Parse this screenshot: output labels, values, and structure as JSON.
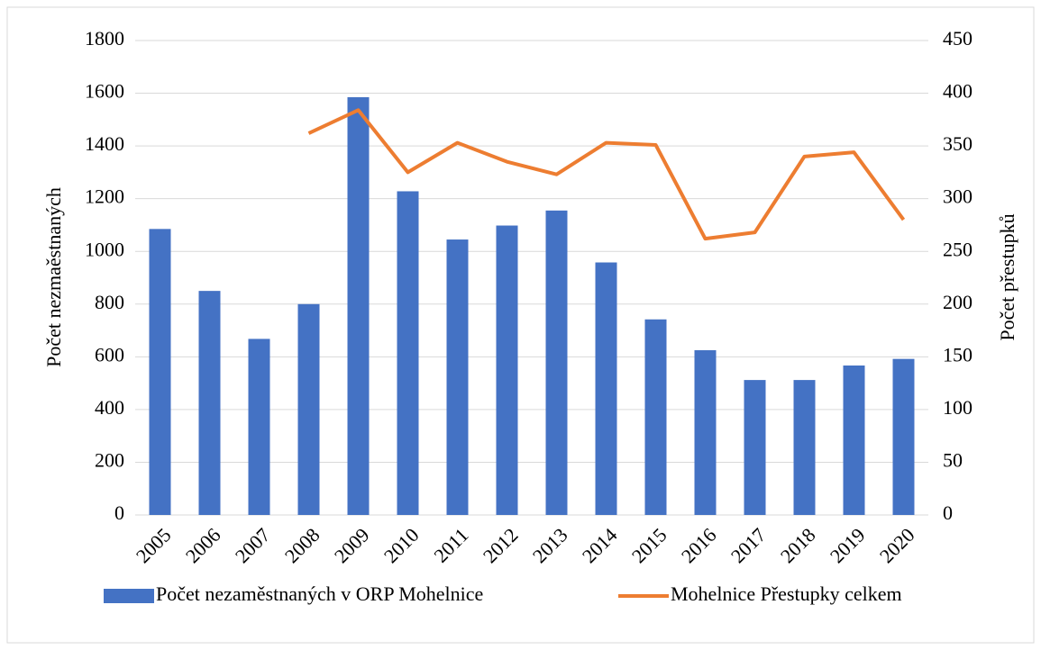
{
  "chart_data": {
    "type": "bar",
    "categories": [
      "2005",
      "2006",
      "2007",
      "2008",
      "2009",
      "2010",
      "2011",
      "2012",
      "2013",
      "2014",
      "2015",
      "2016",
      "2017",
      "2018",
      "2019",
      "2020"
    ],
    "series": [
      {
        "name": "Počet nezaměstnaných v ORP Mohelnice",
        "color": "#4472c4",
        "type": "bar",
        "values": [
          1085,
          850,
          668,
          800,
          1585,
          1228,
          1045,
          1098,
          1155,
          958,
          742,
          625,
          512,
          512,
          567,
          592
        ]
      },
      {
        "name": "Mohelnice Přestupky celkem",
        "color": "#ed7d31",
        "type": "line",
        "axis": "y2",
        "values": [
          null,
          null,
          null,
          362,
          384,
          325,
          353,
          335,
          323,
          353,
          351,
          262,
          268,
          340,
          344,
          280
        ]
      }
    ],
    "ylabel": "Počet nezmaěstnaných",
    "y2label": "Počet přestupků",
    "ylim": [
      0,
      1800
    ],
    "yticks": [
      0,
      200,
      400,
      600,
      800,
      1000,
      1200,
      1400,
      1600,
      1800
    ],
    "y2lim": [
      0,
      450
    ],
    "y2ticks": [
      0,
      50,
      100,
      150,
      200,
      250,
      300,
      350,
      400,
      450
    ],
    "grid": true,
    "legend": "bottom"
  }
}
